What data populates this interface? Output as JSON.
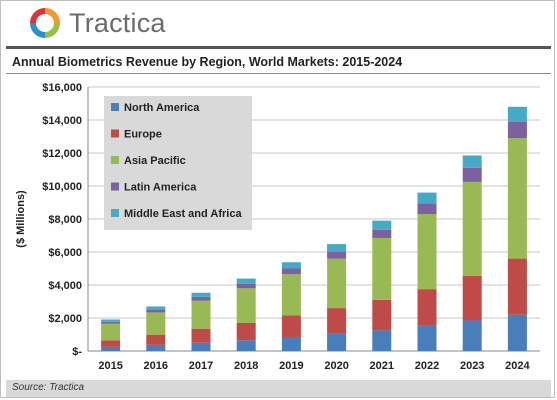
{
  "brand": {
    "name": "Tractica"
  },
  "footer": {
    "source": "Source: Tractica"
  },
  "colors": {
    "north_america": "#4a7ebb",
    "europe": "#be4b48",
    "asia_pacific": "#98b954",
    "latin_america": "#7d60a0",
    "middle_east_africa": "#46aac5",
    "legend_bg": "#d9d9d9"
  },
  "chart_data": {
    "type": "bar",
    "stacked": true,
    "title": "Annual Biometrics Revenue by Region, World Markets: 2015-2024",
    "xlabel": "",
    "ylabel": "($ Millions)",
    "ylim": [
      0,
      16000
    ],
    "y_ticks": [
      0,
      2000,
      4000,
      6000,
      8000,
      10000,
      12000,
      14000,
      16000
    ],
    "y_tick_labels": [
      "$-",
      "$2,000",
      "$4,000",
      "$6,000",
      "$8,000",
      "$10,000",
      "$12,000",
      "$14,000",
      "$16,000"
    ],
    "grid": true,
    "legend_position": "top-left",
    "categories": [
      "2015",
      "2016",
      "2017",
      "2018",
      "2019",
      "2020",
      "2021",
      "2022",
      "2023",
      "2024"
    ],
    "series": [
      {
        "name": "North America",
        "values": [
          250,
          370,
          500,
          650,
          850,
          1050,
          1250,
          1550,
          1850,
          2200
        ]
      },
      {
        "name": "Europe",
        "values": [
          400,
          620,
          850,
          1050,
          1300,
          1550,
          1850,
          2200,
          2700,
          3400
        ]
      },
      {
        "name": "Asia Pacific",
        "values": [
          1000,
          1350,
          1700,
          2100,
          2500,
          3000,
          3750,
          4550,
          5700,
          7300
        ]
      },
      {
        "name": "Latin America",
        "values": [
          120,
          170,
          230,
          280,
          350,
          420,
          500,
          650,
          850,
          1000
        ]
      },
      {
        "name": "Middle East and Africa",
        "values": [
          140,
          190,
          250,
          310,
          380,
          460,
          550,
          650,
          750,
          900
        ]
      }
    ]
  }
}
